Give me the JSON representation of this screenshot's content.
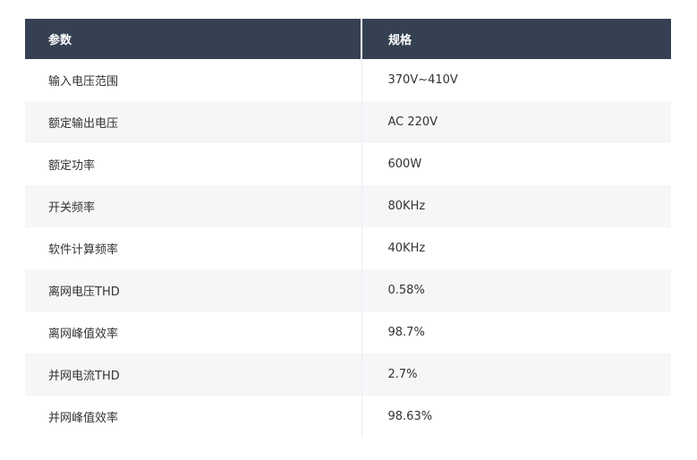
{
  "table": {
    "headers": [
      "参数",
      "规格"
    ],
    "rows": [
      [
        "输入电压范围",
        "370V~410V"
      ],
      [
        "额定输出电压",
        "AC 220V"
      ],
      [
        "额定功率",
        "600W"
      ],
      [
        "开关频率",
        "80KHz"
      ],
      [
        "软件计算频率",
        "40KHz"
      ],
      [
        "离网电压THD",
        "0.58%"
      ],
      [
        "离网峰值效率",
        "98.7%"
      ],
      [
        "并网电流THD",
        "2.7%"
      ],
      [
        "并网峰值效率",
        "98.63%"
      ]
    ]
  }
}
